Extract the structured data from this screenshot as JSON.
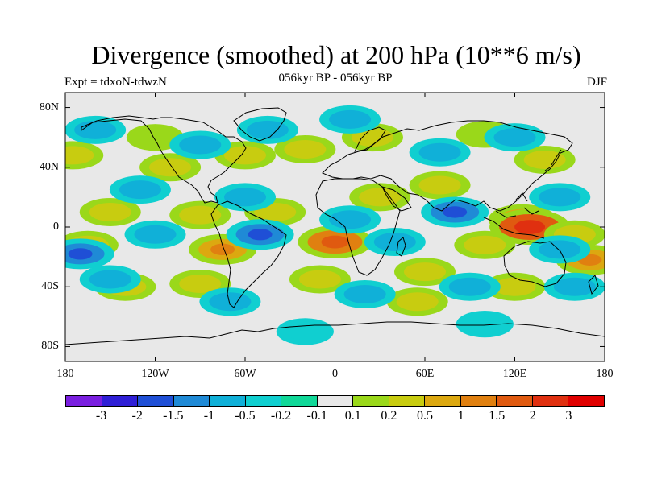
{
  "title": "Divergence (smoothed) at 200 hPa (10**6 m/s)",
  "subtitle": "056kyr BP - 056kyr BP",
  "experiment": "Expt = tdxoN-tdwzN",
  "season": "DJF",
  "map": {
    "projection": "cylindrical equidistant",
    "lon_range": [
      -180,
      180
    ],
    "lat_range": [
      -90,
      90
    ],
    "background_color": "#e8e8e8",
    "coastline_color": "#000000",
    "x_ticks": [
      "180",
      "120W",
      "60W",
      "0",
      "60E",
      "120E",
      "180"
    ],
    "y_ticks": [
      "80N",
      "40N",
      "0",
      "40S",
      "80S"
    ]
  },
  "colorbar": {
    "labels": [
      "-3",
      "-2",
      "-1.5",
      "-1",
      "-0.5",
      "-0.2",
      "-0.1",
      "0.1",
      "0.2",
      "0.5",
      "1",
      "1.5",
      "2",
      "3"
    ],
    "colors": [
      "#7a1fe0",
      "#2f1fd6",
      "#1f4fd6",
      "#1f8ad6",
      "#10b0d8",
      "#10cfd0",
      "#10d898",
      "#e8e8e8",
      "#9ad81a",
      "#c8cc10",
      "#dca810",
      "#e08010",
      "#e05a10",
      "#e03010",
      "#e00000"
    ]
  },
  "anomalies": [
    {
      "lon": -175,
      "lat": 48,
      "value": 0.5
    },
    {
      "lon": -120,
      "lat": 60,
      "value": 0.2
    },
    {
      "lon": -110,
      "lat": 40,
      "value": 0.5
    },
    {
      "lon": -60,
      "lat": 48,
      "value": 0.5
    },
    {
      "lon": -20,
      "lat": 52,
      "value": 0.5
    },
    {
      "lon": 25,
      "lat": 60,
      "value": 0.5
    },
    {
      "lon": 100,
      "lat": 62,
      "value": 0.2
    },
    {
      "lon": 140,
      "lat": 45,
      "value": 0.5
    },
    {
      "lon": -150,
      "lat": 10,
      "value": 0.5
    },
    {
      "lon": -90,
      "lat": 8,
      "value": 0.5
    },
    {
      "lon": -40,
      "lat": 10,
      "value": 0.5
    },
    {
      "lon": 30,
      "lat": 20,
      "value": 0.5
    },
    {
      "lon": 70,
      "lat": 28,
      "value": 0.5
    },
    {
      "lon": 125,
      "lat": 5,
      "value": 1
    },
    {
      "lon": 130,
      "lat": 0,
      "value": 2
    },
    {
      "lon": 160,
      "lat": -5,
      "value": 0.5
    },
    {
      "lon": -165,
      "lat": -12,
      "value": 0.5
    },
    {
      "lon": -75,
      "lat": -15,
      "value": 1
    },
    {
      "lon": 0,
      "lat": -10,
      "value": 1.5
    },
    {
      "lon": 60,
      "lat": -30,
      "value": 0.5
    },
    {
      "lon": 100,
      "lat": -12,
      "value": 0.5
    },
    {
      "lon": 170,
      "lat": -22,
      "value": 1
    },
    {
      "lon": -140,
      "lat": -40,
      "value": 0.5
    },
    {
      "lon": -90,
      "lat": -38,
      "value": 0.5
    },
    {
      "lon": -10,
      "lat": -35,
      "value": 0.5
    },
    {
      "lon": 55,
      "lat": -50,
      "value": 0.5
    },
    {
      "lon": 120,
      "lat": -40,
      "value": 0.5
    },
    {
      "lon": -160,
      "lat": 65,
      "value": -0.5
    },
    {
      "lon": -90,
      "lat": 55,
      "value": -0.5
    },
    {
      "lon": -45,
      "lat": 65,
      "value": -0.5
    },
    {
      "lon": 10,
      "lat": 72,
      "value": -0.5
    },
    {
      "lon": 70,
      "lat": 50,
      "value": -0.5
    },
    {
      "lon": 120,
      "lat": 60,
      "value": -0.5
    },
    {
      "lon": -130,
      "lat": 25,
      "value": -0.5
    },
    {
      "lon": -60,
      "lat": 20,
      "value": -0.5
    },
    {
      "lon": 10,
      "lat": 5,
      "value": -0.5
    },
    {
      "lon": 80,
      "lat": 10,
      "value": -1
    },
    {
      "lon": 150,
      "lat": 20,
      "value": -0.5
    },
    {
      "lon": -170,
      "lat": -18,
      "value": -1
    },
    {
      "lon": -120,
      "lat": -5,
      "value": -0.5
    },
    {
      "lon": -50,
      "lat": -5,
      "value": -1
    },
    {
      "lon": 40,
      "lat": -10,
      "value": -0.5
    },
    {
      "lon": 150,
      "lat": -15,
      "value": -0.5
    },
    {
      "lon": -150,
      "lat": -35,
      "value": -0.5
    },
    {
      "lon": -70,
      "lat": -50,
      "value": -0.5
    },
    {
      "lon": 20,
      "lat": -45,
      "value": -0.5
    },
    {
      "lon": 90,
      "lat": -40,
      "value": -0.5
    },
    {
      "lon": 160,
      "lat": -40,
      "value": -0.5
    },
    {
      "lon": -20,
      "lat": -70,
      "value": -0.2
    },
    {
      "lon": 100,
      "lat": -65,
      "value": -0.2
    }
  ]
}
